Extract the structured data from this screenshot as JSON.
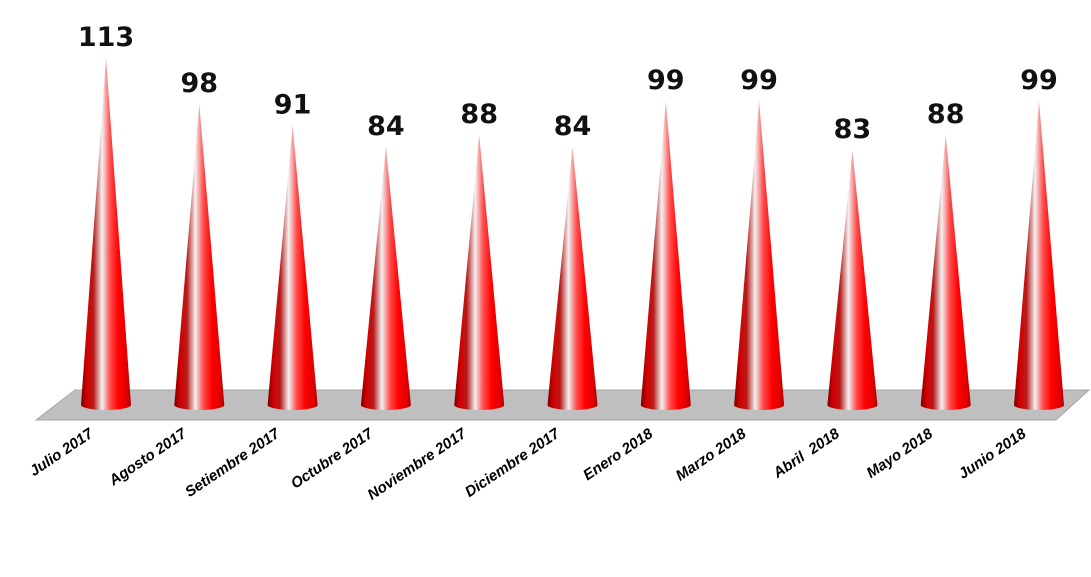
{
  "chart_data": {
    "type": "bar",
    "bar_shape": "cone",
    "categories": [
      "Julio 2017",
      "Agosto 2017",
      "Setiembre 2017",
      "Octubre 2017",
      "Noviembre 2017",
      "Diciembre 2017",
      "Enero 2018",
      "Marzo 2018",
      "Abril  2018",
      "Mayo 2018",
      "Junio 2018"
    ],
    "values": [
      113,
      98,
      91,
      84,
      88,
      84,
      99,
      99,
      83,
      88,
      99
    ],
    "value_labels": [
      "113",
      "98",
      "91",
      "84",
      "88",
      "84",
      "99",
      "99",
      "83",
      "88",
      "99"
    ],
    "title": "",
    "xlabel": "",
    "ylabel": "",
    "grid": false,
    "legend": "none",
    "colors": {
      "cone_dark": "#7a0000",
      "cone_mid": "#ff0000",
      "cone_highlight": "#f2f2f2",
      "floor": "#bfbfbf",
      "floor_edge": "#a6a6a6"
    }
  }
}
